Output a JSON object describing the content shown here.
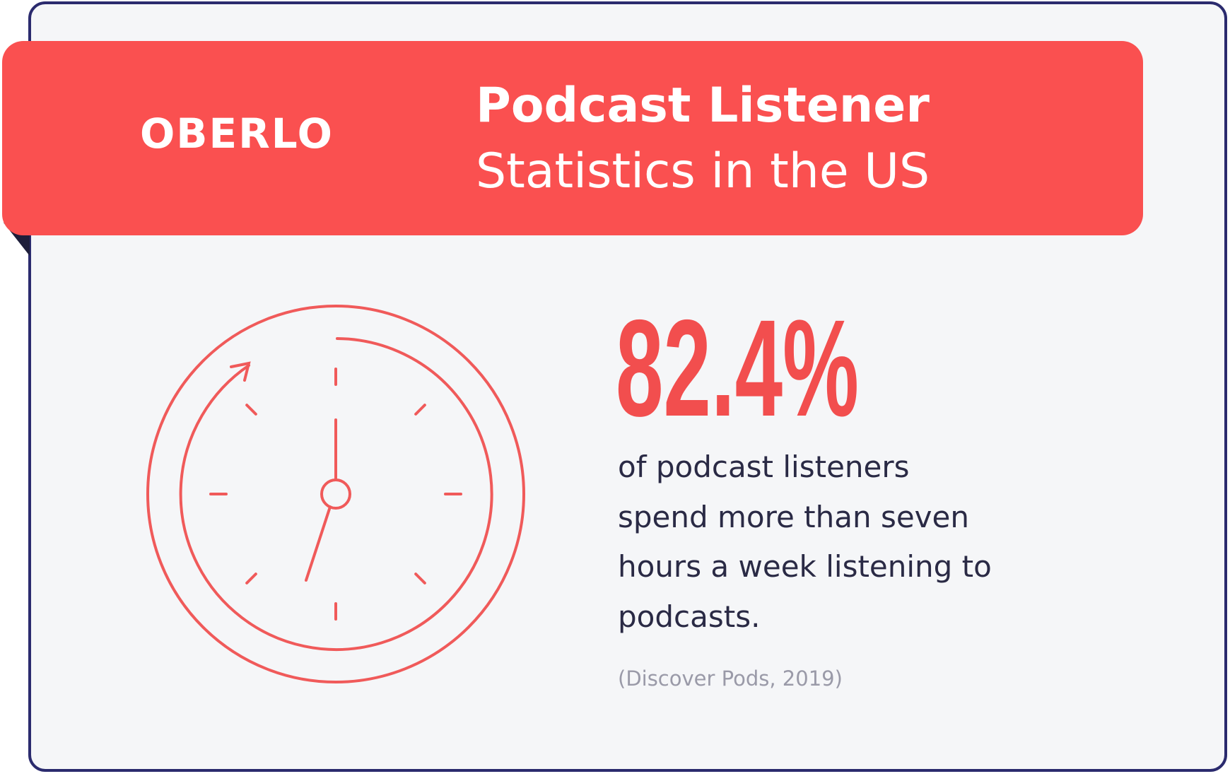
{
  "logo": "OBERLO",
  "header": {
    "title": "Podcast Listener",
    "subtitle": "Statistics in the US"
  },
  "stat": {
    "value": "82.4%",
    "description": [
      "of podcast listeners",
      "spend more than seven",
      "hours a week listening to",
      "podcasts."
    ],
    "source": "(Discover Pods, 2019)"
  }
}
